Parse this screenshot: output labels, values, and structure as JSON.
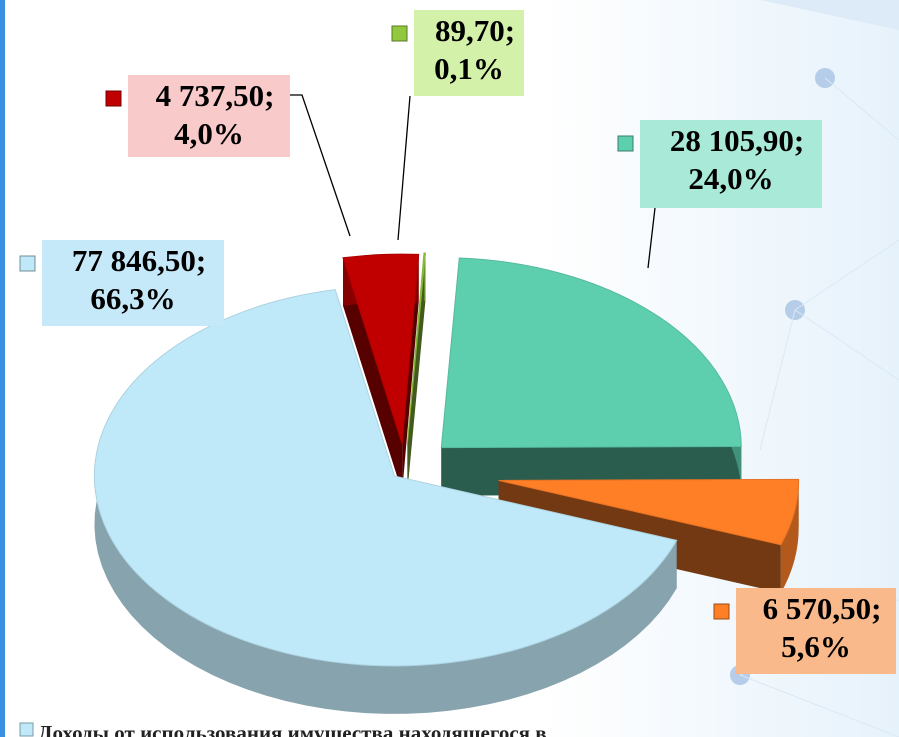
{
  "chart_data": {
    "type": "pie3d",
    "categories": [
      "Доходы от использования имущества находящегося в",
      null,
      null,
      null,
      null
    ],
    "values": [
      77846.5,
      4737.5,
      89.7,
      28105.9,
      6570.5
    ],
    "value_labels": [
      "77 846,50;",
      "4 737,50;",
      "89,70;",
      "28 105,90;",
      "6 570,50;"
    ],
    "percentages": [
      66.3,
      4.0,
      0.1,
      24.0,
      5.6
    ],
    "percent_labels": [
      "66,3%",
      "4,0%",
      "0,1%",
      "24,0%",
      "5,6%"
    ],
    "colors": [
      "#bfe9f9",
      "#c00000",
      "#92c83e",
      "#5ecfae",
      "#ff7f27"
    ],
    "label_colors": [
      "#c6e9fa",
      "#f9caca",
      "#d4f1a9",
      "#a9e9d8",
      "#f9b98b"
    ]
  }
}
